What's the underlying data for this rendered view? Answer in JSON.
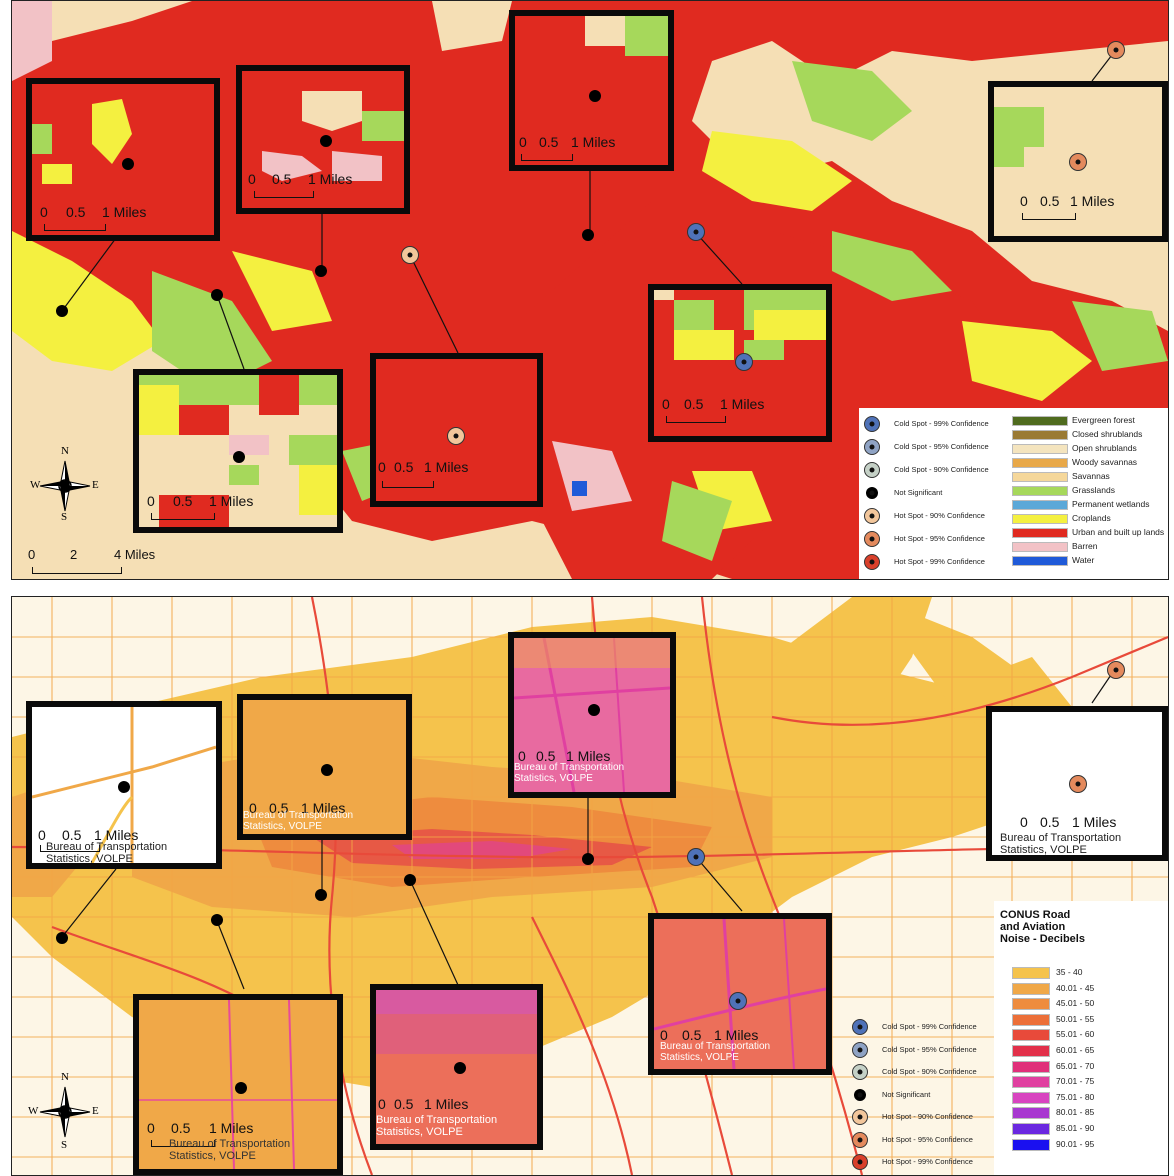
{
  "scale_small": {
    "zero": "0",
    "half": "0.5",
    "one": "1 Miles"
  },
  "scale_large": {
    "zero": "0",
    "two": "2",
    "four": "4 Miles"
  },
  "credit": [
    "Bureau of Transportation",
    "Statistics, VOLPE"
  ],
  "compass": {
    "n": "N",
    "s": "S",
    "e": "E",
    "w": "W"
  },
  "spot_legend": [
    {
      "label": "Cold Spot - 99% Confidence",
      "color": "#4f72b8"
    },
    {
      "label": "Cold Spot - 95% Confidence",
      "color": "#8fa3c4"
    },
    {
      "label": "Cold Spot - 90% Confidence",
      "color": "#c4d0c6"
    },
    {
      "label": "Not Significant",
      "color": "#000000"
    },
    {
      "label": "Hot Spot - 90% Confidence",
      "color": "#f2c69b"
    },
    {
      "label": "Hot Spot - 95% Confidence",
      "color": "#e48a5d"
    },
    {
      "label": "Hot Spot - 99% Confidence",
      "color": "#d9402b"
    }
  ],
  "landcover_legend": [
    {
      "label": "Evergreen forest",
      "color": "#4f6b1e"
    },
    {
      "label": "Closed shrublands",
      "color": "#9a7a34"
    },
    {
      "label": "Open shrublands",
      "color": "#f4e4be"
    },
    {
      "label": "Woody savannas",
      "color": "#e8a848"
    },
    {
      "label": "Savannas",
      "color": "#f5d79a"
    },
    {
      "label": "Grasslands",
      "color": "#a6d85b"
    },
    {
      "label": "Permanent wetlands",
      "color": "#5ba8d8"
    },
    {
      "label": "Croplands",
      "color": "#f4f040"
    },
    {
      "label": "Urban and built up lands",
      "color": "#e02a20"
    },
    {
      "label": "Barren",
      "color": "#f2c2c6"
    },
    {
      "label": "Water",
      "color": "#1f5ad8"
    }
  ],
  "noise_legend": {
    "title": [
      "CONUS Road",
      "and Aviation",
      "Noise - Decibels"
    ],
    "classes": [
      {
        "label": "35 - 40",
        "color": "#f5c34c"
      },
      {
        "label": "40.01 - 45",
        "color": "#f0a848"
      },
      {
        "label": "45.01 - 50",
        "color": "#ee8c3e"
      },
      {
        "label": "50.01 - 55",
        "color": "#ec6f38"
      },
      {
        "label": "55.01 - 60",
        "color": "#e84a3a"
      },
      {
        "label": "60.01 - 65",
        "color": "#e2304a"
      },
      {
        "label": "65.01 - 70",
        "color": "#e0307a"
      },
      {
        "label": "70.01 - 75",
        "color": "#e040a0"
      },
      {
        "label": "75.01 - 80",
        "color": "#d844c0"
      },
      {
        "label": "80.01 - 85",
        "color": "#a838d0"
      },
      {
        "label": "85.01 - 90",
        "color": "#6a28e0"
      },
      {
        "label": "90.01 - 95",
        "color": "#1a10f0"
      }
    ]
  }
}
